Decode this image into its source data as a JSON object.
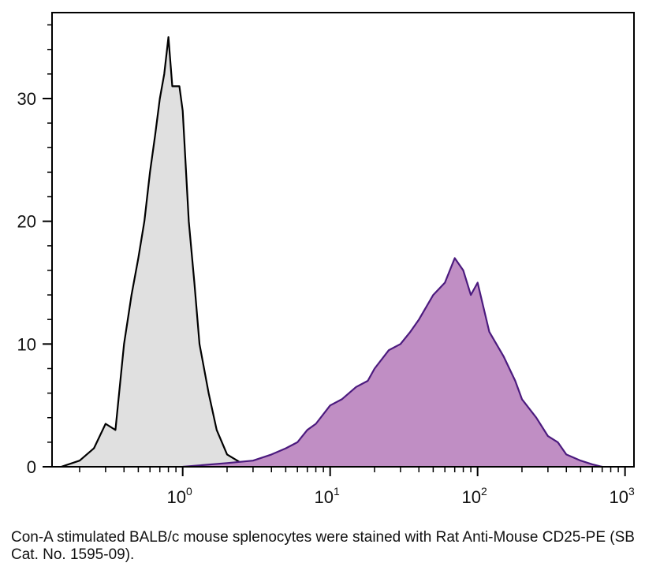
{
  "chart_data": {
    "type": "area",
    "title": "",
    "xlabel": "",
    "ylabel": "",
    "x_scale": "log",
    "xlim": [
      0.13,
      1150
    ],
    "ylim": [
      0,
      37
    ],
    "x_ticks": [
      {
        "value": 1,
        "base": "10",
        "exp": "0"
      },
      {
        "value": 10,
        "base": "10",
        "exp": "1"
      },
      {
        "value": 100,
        "base": "10",
        "exp": "2"
      },
      {
        "value": 1000,
        "base": "10",
        "exp": "3"
      }
    ],
    "y_ticks": [
      {
        "value": 0,
        "label": "0"
      },
      {
        "value": 10,
        "label": "10"
      },
      {
        "value": 20,
        "label": "20"
      },
      {
        "value": 30,
        "label": "30"
      }
    ],
    "grid": false,
    "legend": "none",
    "series": [
      {
        "fill": "#e0e0e0",
        "stroke": "#000000",
        "x": [
          0.15,
          0.2,
          0.25,
          0.3,
          0.35,
          0.4,
          0.45,
          0.5,
          0.55,
          0.6,
          0.65,
          0.7,
          0.75,
          0.8,
          0.85,
          0.9,
          0.95,
          1.0,
          1.1,
          1.2,
          1.3,
          1.5,
          1.7,
          2.0,
          2.5,
          3.0,
          4.0
        ],
        "y": [
          0,
          0.5,
          1.5,
          3.5,
          3,
          10,
          14,
          17,
          20,
          24,
          27,
          30,
          32,
          35,
          31,
          31,
          31,
          29,
          20,
          15,
          10,
          6,
          3,
          1,
          0.3,
          0.1,
          0
        ]
      },
      {
        "fill": "#c08ec4",
        "stroke": "#4b1a7e",
        "x": [
          1,
          2,
          3,
          4,
          5,
          6,
          7,
          8,
          10,
          12,
          15,
          18,
          20,
          25,
          30,
          35,
          40,
          50,
          60,
          70,
          80,
          90,
          100,
          120,
          150,
          180,
          200,
          250,
          300,
          350,
          400,
          500,
          600,
          700
        ],
        "y": [
          0,
          0.3,
          0.5,
          1,
          1.5,
          2,
          3,
          3.5,
          5,
          5.5,
          6.5,
          7,
          8,
          9.5,
          10,
          11,
          12,
          14,
          15,
          17,
          16,
          14,
          15,
          11,
          9,
          7,
          5.5,
          4,
          2.5,
          2,
          1,
          0.5,
          0.2,
          0
        ]
      }
    ]
  },
  "caption": "Con-A stimulated BALB/c mouse splenocytes were stained with Rat Anti-Mouse CD25-PE (SB Cat. No. 1595-09)."
}
